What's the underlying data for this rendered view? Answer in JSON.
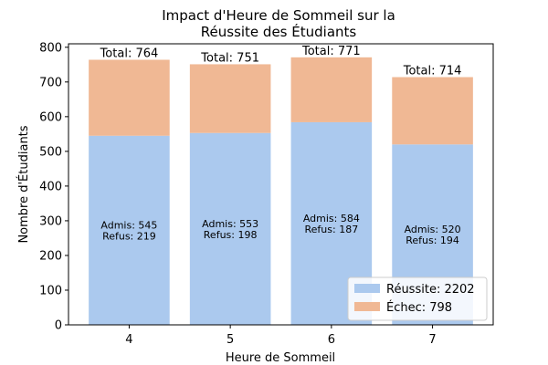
{
  "chart_data": {
    "type": "bar",
    "stacked": true,
    "title_lines": [
      "Impact d'Heure de Sommeil sur la",
      "Réussite des Étudiants"
    ],
    "xlabel": "Heure de Sommeil",
    "ylabel": "Nombre d'Étudiants",
    "categories": [
      "4",
      "5",
      "6",
      "7"
    ],
    "ylim": [
      0,
      810
    ],
    "yticks": [
      0,
      100,
      200,
      300,
      400,
      500,
      600,
      700,
      800
    ],
    "series": [
      {
        "name": "Réussite",
        "values": [
          545,
          553,
          584,
          520
        ],
        "color": "#abc9ee"
      },
      {
        "name": "Échec",
        "values": [
          219,
          198,
          187,
          194
        ],
        "color": "#f0b894"
      }
    ],
    "totals": [
      764,
      751,
      771,
      714
    ],
    "total_labels": [
      "Total: 764",
      "Total: 751",
      "Total: 771",
      "Total: 714"
    ],
    "inner_labels": [
      [
        "Admis: 545",
        "Refus: 219"
      ],
      [
        "Admis: 553",
        "Refus: 198"
      ],
      [
        "Admis: 584",
        "Refus: 187"
      ],
      [
        "Admis: 520",
        "Refus: 194"
      ]
    ],
    "legend": {
      "position": "lower-right",
      "entries": [
        "Réussite: 2202",
        "Échec: 798"
      ]
    }
  }
}
